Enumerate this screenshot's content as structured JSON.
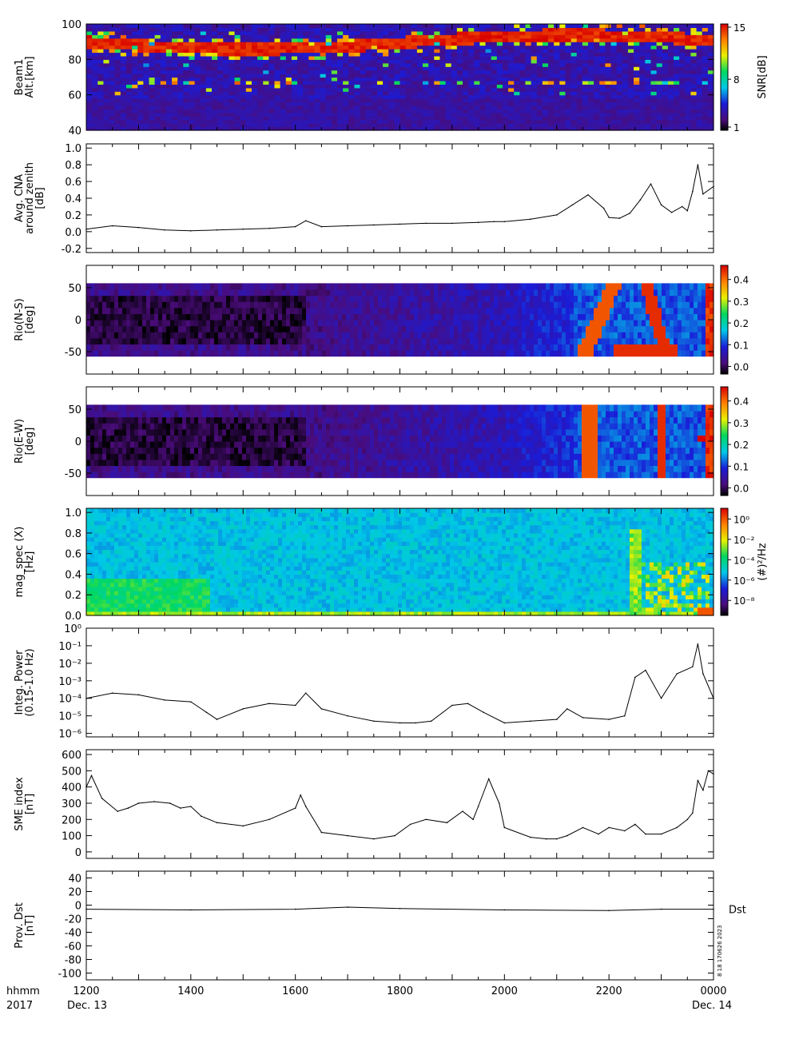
{
  "time_axis": {
    "ticks": [
      "1200",
      "1400",
      "1600",
      "1800",
      "2000",
      "2200",
      "0000"
    ],
    "label_row1": "hhmm",
    "label_row2": "2017",
    "start_date": "Dec. 13",
    "end_date": "Dec. 14",
    "range_hours": [
      12,
      24
    ]
  },
  "stamp": "8 18 170626 2023",
  "chart_data": [
    {
      "type": "heatmap",
      "id": "beam1",
      "ylabel": [
        "Beam1",
        "Alt.[km]"
      ],
      "yticks": [
        "100",
        "80",
        "60",
        "40"
      ],
      "ylim": [
        40,
        100
      ],
      "colorbar": {
        "label": "SNR[dB]",
        "ticks": [
          "15",
          "8",
          "1"
        ],
        "range": [
          1,
          15
        ],
        "colormap": "rainbow"
      },
      "features": [
        {
          "desc": "strong echo layer",
          "alt_center_km": 90,
          "start_hour": 12.0,
          "end_hour": 24.0
        },
        {
          "desc": "sporadic layer",
          "alt_center_km": 67,
          "start_hour": 12.0,
          "end_hour": 24.0
        }
      ]
    },
    {
      "type": "line",
      "id": "cna",
      "ylabel": [
        "Avg. CNA",
        "around zenith",
        "[dB]"
      ],
      "yticks": [
        "1.0",
        "0.8",
        "0.6",
        "0.4",
        "0.2",
        "0.0",
        "-0.2"
      ],
      "ylim": [
        -0.25,
        1.05
      ],
      "x": [
        12.0,
        12.5,
        13.0,
        13.5,
        14.0,
        14.5,
        15.0,
        15.5,
        16.0,
        16.2,
        16.5,
        17.0,
        17.5,
        18.0,
        18.5,
        19.0,
        19.5,
        19.8,
        20.0,
        20.5,
        21.0,
        21.3,
        21.6,
        21.9,
        22.0,
        22.2,
        22.4,
        22.6,
        22.8,
        23.0,
        23.2,
        23.4,
        23.5,
        23.6,
        23.7,
        23.8,
        24.0
      ],
      "values": [
        0.03,
        0.07,
        0.05,
        0.02,
        0.01,
        0.02,
        0.03,
        0.04,
        0.06,
        0.13,
        0.06,
        0.07,
        0.08,
        0.09,
        0.1,
        0.1,
        0.11,
        0.12,
        0.12,
        0.15,
        0.2,
        0.32,
        0.44,
        0.28,
        0.17,
        0.16,
        0.22,
        0.38,
        0.57,
        0.32,
        0.23,
        0.3,
        0.25,
        0.48,
        0.8,
        0.45,
        0.54
      ]
    },
    {
      "type": "heatmap",
      "id": "rio_ns",
      "ylabel": [
        "Rio(N-S)",
        "[deg]"
      ],
      "yticks": [
        "50",
        "0",
        "-50"
      ],
      "ylim": [
        -85,
        85
      ],
      "colorbar": {
        "label": "",
        "ticks": [
          "0.4",
          "0.3",
          "0.2",
          "0.1",
          "0.0"
        ],
        "range": [
          0,
          0.48
        ],
        "colormap": "rainbow"
      }
    },
    {
      "type": "heatmap",
      "id": "rio_ew",
      "ylabel": [
        "Rio(E-W)",
        "[deg]"
      ],
      "yticks": [
        "50",
        "0",
        "-50"
      ],
      "ylim": [
        -85,
        85
      ],
      "colorbar": {
        "label": "",
        "ticks": [
          "0.4",
          "0.3",
          "0.2",
          "0.1",
          "0.0"
        ],
        "range": [
          0,
          0.48
        ],
        "colormap": "rainbow"
      }
    },
    {
      "type": "heatmap",
      "id": "mag_spec",
      "ylabel": [
        "mag_spec (X)",
        "[Hz]"
      ],
      "yticks": [
        "1.0",
        "0.8",
        "0.6",
        "0.4",
        "0.2",
        "0.0"
      ],
      "ylim": [
        0,
        1.04
      ],
      "colorbar": {
        "label": "(#)²/Hz",
        "ticks": [
          "10⁰",
          "10⁻²",
          "10⁻⁴",
          "10⁻⁶",
          "10⁻⁸"
        ],
        "range": [
          -9,
          1
        ],
        "colormap": "rainbow",
        "scale": "log"
      }
    },
    {
      "type": "line",
      "id": "integ_power",
      "ylabel": [
        "Integ. Power",
        "(0.15-1.0 Hz)"
      ],
      "yticks": [
        "10⁰",
        "10⁻¹",
        "10⁻²",
        "10⁻³",
        "10⁻⁴",
        "10⁻⁵",
        "10⁻⁶"
      ],
      "ylim_log10": [
        -6.2,
        0
      ],
      "scale": "log",
      "x": [
        12.0,
        12.5,
        13.0,
        13.5,
        14.0,
        14.3,
        14.5,
        15.0,
        15.5,
        16.0,
        16.2,
        16.5,
        17.0,
        17.5,
        18.0,
        18.3,
        18.6,
        19.0,
        19.3,
        19.6,
        20.0,
        20.5,
        21.0,
        21.2,
        21.5,
        22.0,
        22.3,
        22.5,
        22.7,
        23.0,
        23.3,
        23.6,
        23.7,
        23.8,
        24.0
      ],
      "values_log10": [
        -4.0,
        -3.7,
        -3.8,
        -4.1,
        -4.2,
        -4.8,
        -5.2,
        -4.6,
        -4.3,
        -4.4,
        -3.7,
        -4.6,
        -5.0,
        -5.3,
        -5.4,
        -5.4,
        -5.3,
        -4.4,
        -4.3,
        -4.8,
        -5.4,
        -5.3,
        -5.2,
        -4.6,
        -5.1,
        -5.2,
        -5.0,
        -2.8,
        -2.4,
        -4.0,
        -2.6,
        -2.2,
        -0.9,
        -2.6,
        -4.0
      ]
    },
    {
      "type": "line",
      "id": "sme",
      "ylabel": [
        "SME index",
        "[nT]"
      ],
      "yticks": [
        "600",
        "500",
        "400",
        "300",
        "200",
        "100",
        "0"
      ],
      "ylim": [
        -40,
        630
      ],
      "x": [
        12.0,
        12.1,
        12.3,
        12.6,
        12.8,
        13.0,
        13.3,
        13.6,
        13.8,
        14.0,
        14.2,
        14.5,
        15.0,
        15.5,
        16.0,
        16.1,
        16.2,
        16.5,
        17.0,
        17.5,
        17.9,
        18.2,
        18.5,
        18.9,
        19.2,
        19.4,
        19.5,
        19.7,
        19.9,
        20.0,
        20.5,
        20.8,
        21.0,
        21.2,
        21.5,
        21.8,
        22.0,
        22.3,
        22.5,
        22.7,
        23.0,
        23.3,
        23.5,
        23.6,
        23.7,
        23.8,
        23.9,
        24.0
      ],
      "values": [
        400,
        470,
        330,
        250,
        270,
        300,
        310,
        300,
        270,
        280,
        220,
        180,
        160,
        200,
        270,
        350,
        280,
        120,
        100,
        80,
        100,
        170,
        200,
        180,
        250,
        200,
        280,
        450,
        300,
        150,
        90,
        80,
        80,
        100,
        150,
        110,
        150,
        130,
        170,
        110,
        110,
        150,
        200,
        240,
        440,
        380,
        500,
        480
      ]
    },
    {
      "type": "line",
      "id": "dst",
      "ylabel": [
        "Prov. Dst",
        "[nT]"
      ],
      "yticks": [
        "40",
        "20",
        "0",
        "-20",
        "-40",
        "-60",
        "-80",
        "-100"
      ],
      "ylim": [
        -110,
        50
      ],
      "series_label": "Dst",
      "x": [
        12.0,
        14.0,
        16.0,
        17.0,
        18.0,
        20.0,
        22.0,
        23.0,
        24.0
      ],
      "values": [
        -6,
        -7,
        -6,
        -3,
        -5,
        -7,
        -8,
        -6,
        -6
      ]
    }
  ]
}
